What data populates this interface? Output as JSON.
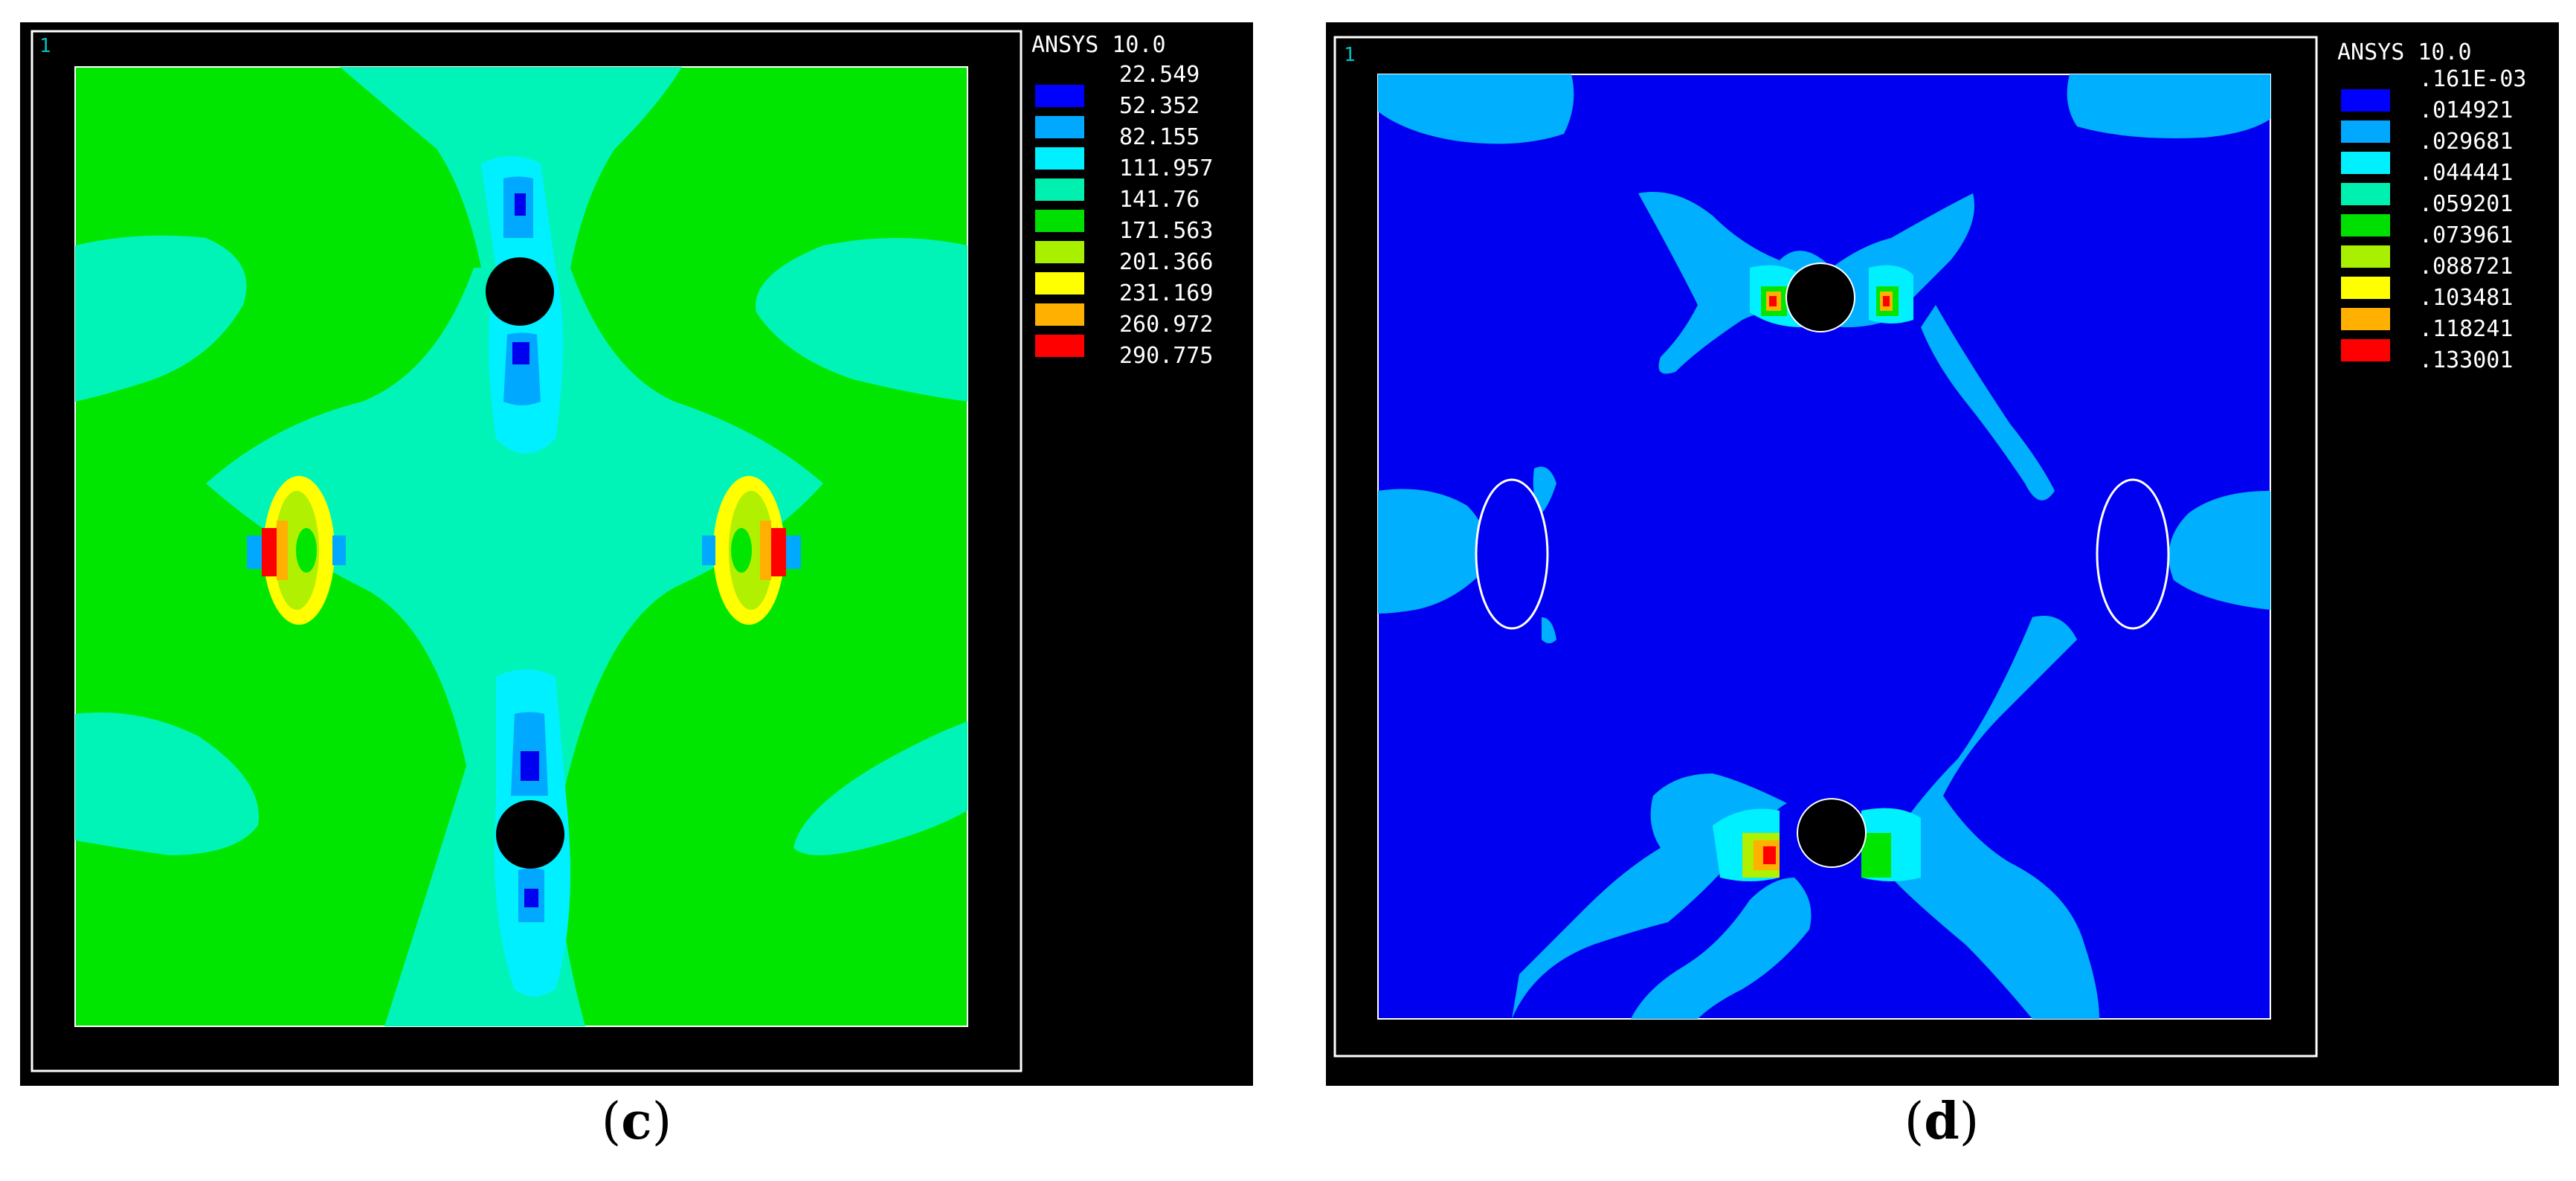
{
  "panels": [
    {
      "id": "c",
      "window_number": "1",
      "software": "ANSYS 10.0",
      "legend": {
        "values": [
          "22.549",
          "52.352",
          "82.155",
          "111.957",
          "141.76",
          "171.563",
          "201.366",
          "231.169",
          "260.972",
          "290.775"
        ],
        "colors": [
          "#0000ff",
          "#00a8ff",
          "#00f0ff",
          "#00f0b0",
          "#00e000",
          "#a8f000",
          "#ffff00",
          "#ffb000",
          "#ff0000"
        ]
      },
      "caption_letter": "c"
    },
    {
      "id": "d",
      "window_number": "1",
      "software": "ANSYS 10.0",
      "legend": {
        "values": [
          ".161E-03",
          ".014921",
          ".029681",
          ".044441",
          ".059201",
          ".073961",
          ".088721",
          ".103481",
          ".118241",
          ".133001"
        ],
        "colors": [
          "#0000ff",
          "#00a8ff",
          "#00f0ff",
          "#00f0b0",
          "#00e000",
          "#a8f000",
          "#ffff00",
          "#ffb000",
          "#ff0000"
        ]
      },
      "caption_letter": "d"
    }
  ],
  "plot_colors": {
    "blue": "#0000f0",
    "light_blue": "#00b0ff",
    "cyan": "#00f0ff",
    "teal": "#00f4b8",
    "green": "#00e600",
    "yellow_green": "#b0f000",
    "yellow": "#ffff00",
    "orange": "#ffb000",
    "red": "#ff0000",
    "black": "#000000",
    "frame": "#ffffff",
    "label": "#00c0c0"
  }
}
